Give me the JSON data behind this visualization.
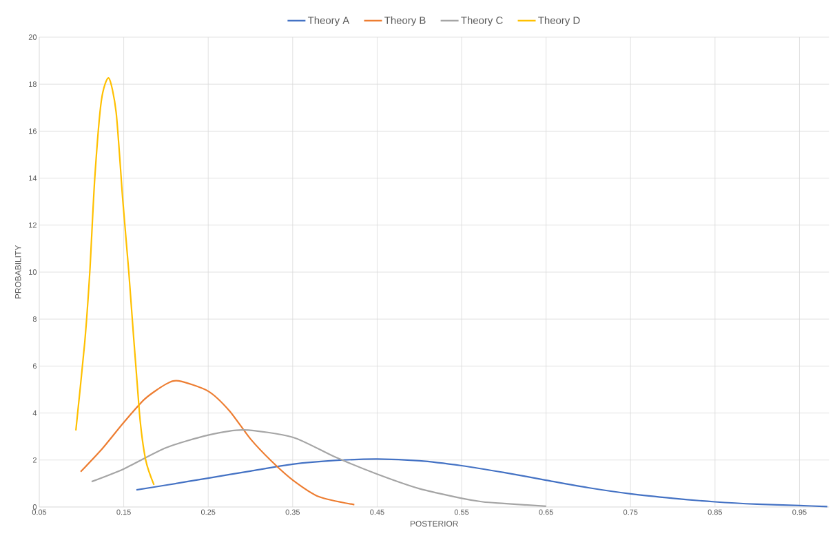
{
  "chart_data": {
    "type": "line",
    "xlabel": "POSTERIOR",
    "ylabel": "PROBABILITY",
    "xlim": [
      0.05,
      0.985
    ],
    "ylim": [
      0,
      20
    ],
    "xticks": [
      0.05,
      0.15,
      0.25,
      0.35,
      0.45,
      0.55,
      0.65,
      0.75,
      0.85,
      0.95
    ],
    "yticks": [
      0,
      2,
      4,
      6,
      8,
      10,
      12,
      14,
      16,
      18,
      20
    ],
    "grid": true,
    "legend": "top",
    "marker": "none",
    "line_style": "solid",
    "series": [
      {
        "name": "Theory A",
        "color": "#4472c4",
        "x": [
          0.165,
          0.2,
          0.25,
          0.3,
          0.35,
          0.4,
          0.45,
          0.5,
          0.55,
          0.6,
          0.65,
          0.7,
          0.75,
          0.8,
          0.85,
          0.9,
          0.95,
          0.983
        ],
        "values": [
          0.73,
          0.93,
          1.23,
          1.53,
          1.82,
          1.98,
          2.04,
          1.97,
          1.76,
          1.47,
          1.14,
          0.82,
          0.56,
          0.37,
          0.22,
          0.12,
          0.06,
          0.02
        ]
      },
      {
        "name": "Theory B",
        "color": "#ed7d31",
        "x": [
          0.099,
          0.125,
          0.15,
          0.175,
          0.2,
          0.215,
          0.25,
          0.275,
          0.3,
          0.325,
          0.35,
          0.381,
          0.423
        ],
        "values": [
          1.5,
          2.5,
          3.6,
          4.6,
          5.23,
          5.37,
          4.93,
          4.1,
          2.9,
          1.95,
          1.15,
          0.44,
          0.1
        ]
      },
      {
        "name": "Theory C",
        "color": "#a5a5a5",
        "x": [
          0.112,
          0.15,
          0.2,
          0.25,
          0.292,
          0.35,
          0.4,
          0.45,
          0.5,
          0.55,
          0.575,
          0.6,
          0.65
        ],
        "values": [
          1.08,
          1.62,
          2.52,
          3.06,
          3.28,
          2.97,
          2.13,
          1.4,
          0.78,
          0.37,
          0.22,
          0.15,
          0.03
        ]
      },
      {
        "name": "Theory D",
        "color": "#ffc000",
        "x": [
          0.0933,
          0.1038,
          0.1098,
          0.1157,
          0.1235,
          0.1323,
          0.141,
          0.149,
          0.156,
          0.1686,
          0.176,
          0.1858
        ],
        "values": [
          3.26,
          7.0,
          10,
          14,
          17.3,
          18.26,
          16.8,
          13,
          10,
          4,
          2,
          0.94
        ]
      }
    ]
  }
}
